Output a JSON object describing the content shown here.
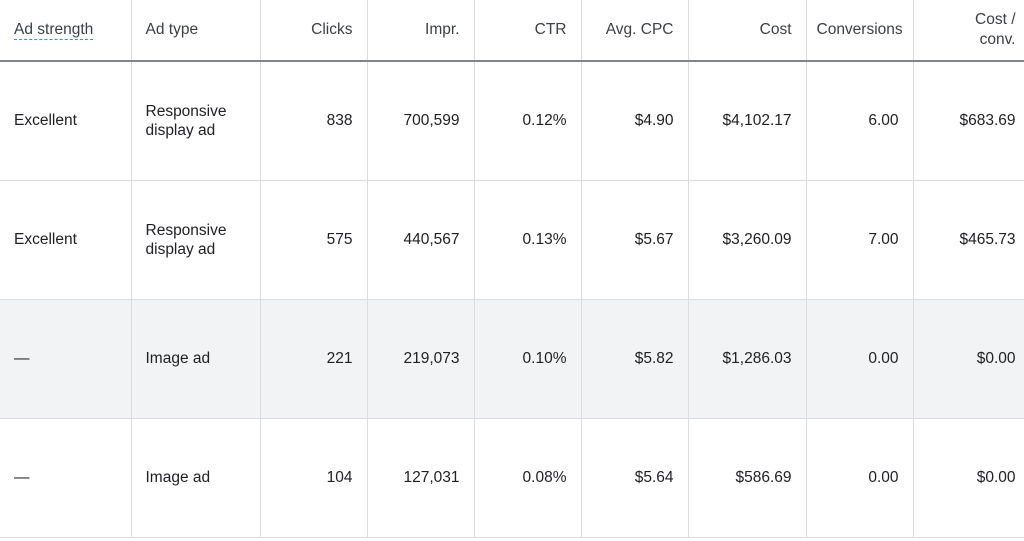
{
  "columns": [
    {
      "key": "ad_strength",
      "label": "Ad strength"
    },
    {
      "key": "ad_type",
      "label": "Ad type"
    },
    {
      "key": "clicks",
      "label": "Clicks"
    },
    {
      "key": "impr",
      "label": "Impr."
    },
    {
      "key": "ctr",
      "label": "CTR"
    },
    {
      "key": "avg_cpc",
      "label": "Avg. CPC"
    },
    {
      "key": "cost",
      "label": "Cost"
    },
    {
      "key": "conversions",
      "label": "Conversions"
    },
    {
      "key": "cost_conv_line1",
      "label": "Cost /"
    },
    {
      "key": "cost_conv_line2",
      "label": "conv."
    }
  ],
  "rows": [
    {
      "ad_strength": "Excellent",
      "ad_type_line1": "Responsive",
      "ad_type_line2": "display ad",
      "clicks": "838",
      "impr": "700,599",
      "ctr": "0.12%",
      "avg_cpc": "$4.90",
      "cost": "$4,102.17",
      "conversions": "6.00",
      "cost_conv": "$683.69"
    },
    {
      "ad_strength": "Excellent",
      "ad_type_line1": "Responsive",
      "ad_type_line2": "display ad",
      "clicks": "575",
      "impr": "440,567",
      "ctr": "0.13%",
      "avg_cpc": "$5.67",
      "cost": "$3,260.09",
      "conversions": "7.00",
      "cost_conv": "$465.73"
    },
    {
      "ad_strength": "—",
      "ad_type": "Image ad",
      "clicks": "221",
      "impr": "219,073",
      "ctr": "0.10%",
      "avg_cpc": "$5.82",
      "cost": "$1,286.03",
      "conversions": "0.00",
      "cost_conv": "$0.00"
    },
    {
      "ad_strength": "—",
      "ad_type": "Image ad",
      "clicks": "104",
      "impr": "127,031",
      "ctr": "0.08%",
      "avg_cpc": "$5.64",
      "cost": "$586.69",
      "conversions": "0.00",
      "cost_conv": "$0.00"
    }
  ],
  "highlighted_row_index": 2
}
